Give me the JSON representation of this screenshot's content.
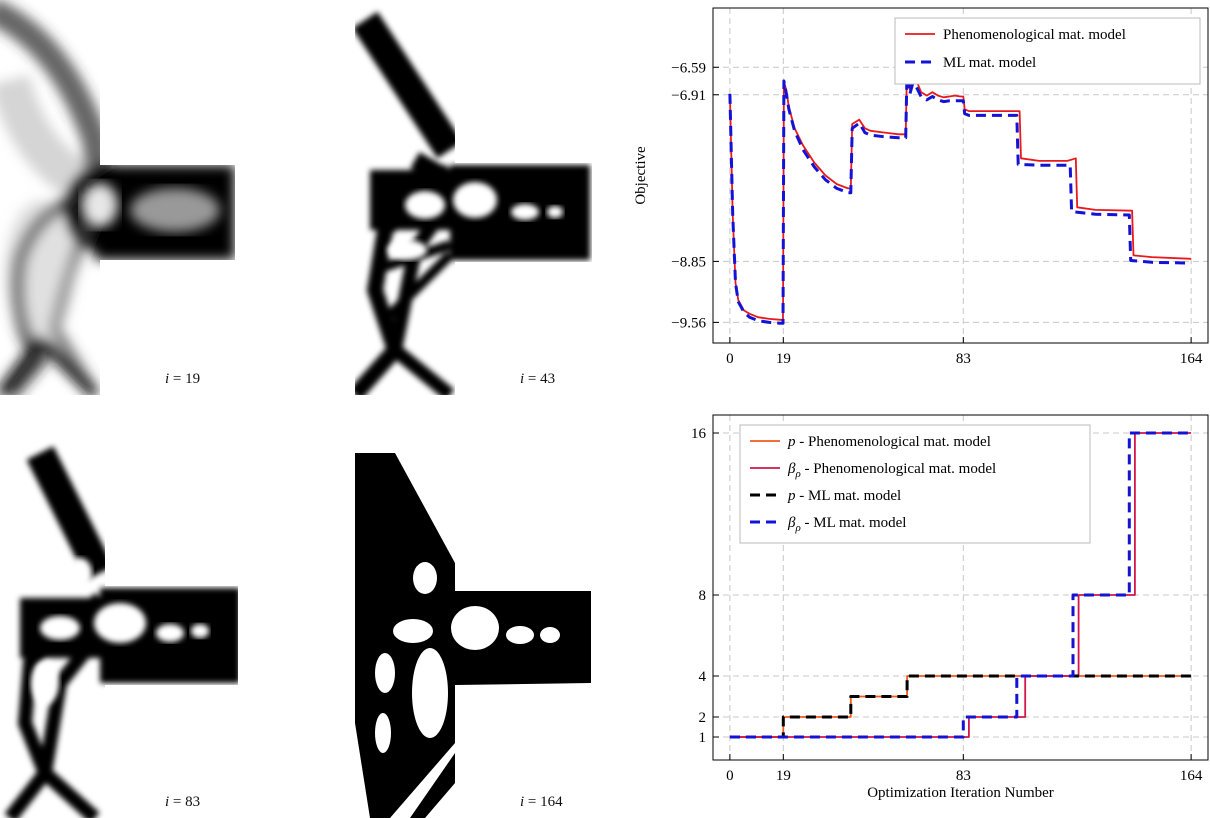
{
  "panels": [
    {
      "label": "i = 19",
      "ivar": "i",
      "eq": " = ",
      "value": "19"
    },
    {
      "label": "i = 43",
      "ivar": "i",
      "eq": " = ",
      "value": "43"
    },
    {
      "label": "i = 83",
      "ivar": "i",
      "eq": " = ",
      "value": "83"
    },
    {
      "label": "i = 164",
      "ivar": "i",
      "eq": " = ",
      "value": "164"
    }
  ],
  "colors": {
    "red": "#e8191d",
    "blue": "#1313d6",
    "orange": "#f05a1e",
    "crimson": "#d0164a",
    "black": "#000000"
  },
  "chart_data": [
    {
      "type": "line",
      "title": "",
      "xlabel": "",
      "ylabel": "Objective",
      "xlim": [
        -6,
        170
      ],
      "ylim": [
        -9.8,
        -5.9
      ],
      "xticks": [
        0,
        19,
        83,
        164
      ],
      "yticks": [
        -6.59,
        -6.91,
        -8.85,
        -9.56
      ],
      "grid": true,
      "legend_position": "top-right",
      "series": [
        {
          "name": "Phenomenological mat. model",
          "color": "#e8191d",
          "style": "solid",
          "points": [
            [
              0,
              -6.9
            ],
            [
              1,
              -8.3
            ],
            [
              2,
              -9.1
            ],
            [
              3,
              -9.3
            ],
            [
              5,
              -9.42
            ],
            [
              7,
              -9.46
            ],
            [
              10,
              -9.5
            ],
            [
              14,
              -9.52
            ],
            [
              18,
              -9.53
            ],
            [
              18.9,
              -9.53
            ],
            [
              19.2,
              -6.75
            ],
            [
              20,
              -6.85
            ],
            [
              21,
              -7.05
            ],
            [
              23,
              -7.3
            ],
            [
              26,
              -7.5
            ],
            [
              30,
              -7.7
            ],
            [
              34,
              -7.85
            ],
            [
              38,
              -7.95
            ],
            [
              42,
              -8.0
            ],
            [
              43,
              -8.0
            ],
            [
              43.5,
              -7.25
            ],
            [
              46,
              -7.2
            ],
            [
              48,
              -7.3
            ],
            [
              50,
              -7.33
            ],
            [
              55,
              -7.35
            ],
            [
              60,
              -7.37
            ],
            [
              62.5,
              -7.37
            ],
            [
              63,
              -6.55
            ],
            [
              64,
              -6.85
            ],
            [
              65,
              -6.7
            ],
            [
              66,
              -6.72
            ],
            [
              68,
              -6.88
            ],
            [
              70,
              -6.92
            ],
            [
              72,
              -6.88
            ],
            [
              74,
              -6.92
            ],
            [
              76,
              -6.94
            ],
            [
              78,
              -6.93
            ],
            [
              80,
              -6.92
            ],
            [
              82,
              -6.93
            ],
            [
              83,
              -6.93
            ],
            [
              83.5,
              -7.08
            ],
            [
              85,
              -7.1
            ],
            [
              100,
              -7.1
            ],
            [
              103,
              -7.1
            ],
            [
              103.5,
              -7.65
            ],
            [
              110,
              -7.68
            ],
            [
              120,
              -7.68
            ],
            [
              122,
              -7.66
            ],
            [
              123,
              -7.65
            ],
            [
              123.5,
              -8.22
            ],
            [
              130,
              -8.25
            ],
            [
              143,
              -8.26
            ],
            [
              143.5,
              -8.78
            ],
            [
              150,
              -8.8
            ],
            [
              164,
              -8.82
            ]
          ]
        },
        {
          "name": "ML mat. model",
          "color": "#1313d6",
          "style": "dashed",
          "points": [
            [
              0,
              -6.9
            ],
            [
              1,
              -8.3
            ],
            [
              2,
              -9.1
            ],
            [
              3,
              -9.32
            ],
            [
              5,
              -9.44
            ],
            [
              7,
              -9.5
            ],
            [
              10,
              -9.54
            ],
            [
              14,
              -9.56
            ],
            [
              18,
              -9.57
            ],
            [
              18.9,
              -9.57
            ],
            [
              19.2,
              -6.75
            ],
            [
              20,
              -6.88
            ],
            [
              21,
              -7.08
            ],
            [
              23,
              -7.33
            ],
            [
              26,
              -7.55
            ],
            [
              30,
              -7.75
            ],
            [
              34,
              -7.9
            ],
            [
              38,
              -8.0
            ],
            [
              42,
              -8.05
            ],
            [
              43,
              -8.05
            ],
            [
              43.5,
              -7.3
            ],
            [
              46,
              -7.24
            ],
            [
              48,
              -7.35
            ],
            [
              50,
              -7.38
            ],
            [
              55,
              -7.4
            ],
            [
              60,
              -7.41
            ],
            [
              62.5,
              -7.41
            ],
            [
              63,
              -6.6
            ],
            [
              64,
              -6.9
            ],
            [
              65,
              -6.78
            ],
            [
              66,
              -6.8
            ],
            [
              68,
              -6.93
            ],
            [
              70,
              -6.97
            ],
            [
              72,
              -6.93
            ],
            [
              74,
              -6.97
            ],
            [
              76,
              -6.99
            ],
            [
              78,
              -6.98
            ],
            [
              80,
              -6.98
            ],
            [
              82,
              -6.98
            ],
            [
              83,
              -6.98
            ],
            [
              83.5,
              -7.13
            ],
            [
              85,
              -7.15
            ],
            [
              100,
              -7.15
            ],
            [
              102,
              -7.15
            ],
            [
              102.5,
              -7.72
            ],
            [
              110,
              -7.73
            ],
            [
              120,
              -7.73
            ],
            [
              121,
              -7.73
            ],
            [
              121.5,
              -8.27
            ],
            [
              130,
              -8.3
            ],
            [
              142,
              -8.31
            ],
            [
              142.5,
              -8.84
            ],
            [
              150,
              -8.86
            ],
            [
              164,
              -8.87
            ]
          ]
        }
      ]
    },
    {
      "type": "line",
      "title": "",
      "xlabel": "Optimization Iteration Number",
      "ylabel": "",
      "xlim": [
        -6,
        170
      ],
      "ylim": [
        0,
        17
      ],
      "xticks": [
        0,
        19,
        83,
        164
      ],
      "yticks": [
        1,
        2,
        4,
        8,
        16
      ],
      "grid": true,
      "legend_position": "top-left",
      "series": [
        {
          "name": "p - Phenomenological mat. model",
          "symbol": "p",
          "suffix": " - Phenomenological mat. model",
          "color": "#f05a1e",
          "style": "solid",
          "points": [
            [
              0,
              1
            ],
            [
              19,
              1
            ],
            [
              19,
              2
            ],
            [
              43,
              2
            ],
            [
              43,
              3
            ],
            [
              63,
              3
            ],
            [
              63,
              4
            ],
            [
              164,
              4
            ]
          ]
        },
        {
          "name": "βρ - Phenomenological mat. model",
          "symbol": "β",
          "sub": "ρ",
          "suffix": " - Phenomenological mat. model",
          "color": "#d0164a",
          "style": "solid",
          "points": [
            [
              0,
              1
            ],
            [
              85,
              1
            ],
            [
              85,
              2
            ],
            [
              105,
              2
            ],
            [
              105,
              4
            ],
            [
              124,
              4
            ],
            [
              124,
              8
            ],
            [
              144,
              8
            ],
            [
              144,
              16
            ],
            [
              164,
              16
            ]
          ]
        },
        {
          "name": "p - ML mat. model",
          "symbol": "p",
          "suffix": " - ML mat. model",
          "color": "#000000",
          "style": "dashed",
          "points": [
            [
              0,
              1
            ],
            [
              19,
              1
            ],
            [
              19,
              2
            ],
            [
              43,
              2
            ],
            [
              43,
              3
            ],
            [
              63,
              3
            ],
            [
              63,
              4
            ],
            [
              164,
              4
            ]
          ]
        },
        {
          "name": "βρ - ML mat. model",
          "symbol": "β",
          "sub": "ρ",
          "suffix": " - ML mat. model",
          "color": "#1313d6",
          "style": "dashed",
          "points": [
            [
              0,
              1
            ],
            [
              83,
              1
            ],
            [
              83,
              2
            ],
            [
              102,
              2
            ],
            [
              102,
              4
            ],
            [
              122,
              4
            ],
            [
              122,
              8
            ],
            [
              142,
              8
            ],
            [
              142,
              16
            ],
            [
              164,
              16
            ]
          ]
        }
      ]
    }
  ]
}
